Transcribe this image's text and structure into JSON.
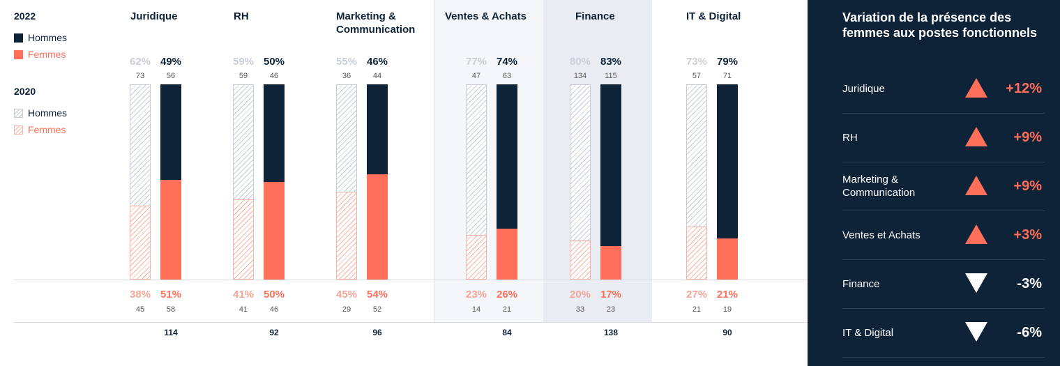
{
  "colors": {
    "navy": "#0e2238",
    "coral": "#ff6f59",
    "hatch_men": "#c7cdd8",
    "hatch_women": "#f9b3a6",
    "pct_2020_men": "#c9ced7",
    "pct_2020_women": "#f4a597",
    "panel_light": "#f4f6f9",
    "panel_mid": "#e9edf3"
  },
  "legend": {
    "year_current": "2022",
    "year_previous": "2020",
    "men": "Hommes",
    "women": "Femmes"
  },
  "chart_data": {
    "type": "bar",
    "stacked": true,
    "categories": [
      "Juridique",
      "RH",
      "Marketing & Communication",
      "Ventes & Achats",
      "Finance",
      "IT & Digital"
    ],
    "category_titles": [
      [
        "Juridique"
      ],
      [
        "RH"
      ],
      [
        "Marketing &",
        "Communication"
      ],
      [
        "Ventes & Achats"
      ],
      [
        "Finance"
      ],
      [
        "IT & Digital"
      ]
    ],
    "series": [
      {
        "name": "Hommes",
        "year": "2020",
        "percent": [
          62,
          59,
          55,
          77,
          80,
          73
        ],
        "count": [
          73,
          59,
          36,
          47,
          134,
          57
        ]
      },
      {
        "name": "Femmes",
        "year": "2020",
        "percent": [
          38,
          41,
          45,
          23,
          20,
          27
        ],
        "count": [
          45,
          41,
          29,
          14,
          33,
          21
        ]
      },
      {
        "name": "Hommes",
        "year": "2022",
        "percent": [
          49,
          50,
          46,
          74,
          83,
          79
        ],
        "count": [
          56,
          46,
          44,
          63,
          115,
          71
        ]
      },
      {
        "name": "Femmes",
        "year": "2022",
        "percent": [
          51,
          50,
          54,
          26,
          17,
          21
        ],
        "count": [
          58,
          46,
          52,
          21,
          23,
          19
        ]
      }
    ],
    "totals_2022": [
      114,
      92,
      96,
      84,
      138,
      90
    ],
    "ylim": [
      0,
      100
    ]
  },
  "side_panel": {
    "title": "Variation de la présence des femmes aux postes fonctionnels",
    "rows": [
      {
        "label": "Juridique",
        "direction": "up",
        "value": "+12%"
      },
      {
        "label": "RH",
        "direction": "up",
        "value": "+9%"
      },
      {
        "label": "Marketing & Communication",
        "direction": "up",
        "value": "+9%"
      },
      {
        "label": "Ventes et Achats",
        "direction": "up",
        "value": "+3%"
      },
      {
        "label": "Finance",
        "direction": "down",
        "value": "-3%"
      },
      {
        "label": "IT & Digital",
        "direction": "down",
        "value": "-6%"
      }
    ]
  }
}
